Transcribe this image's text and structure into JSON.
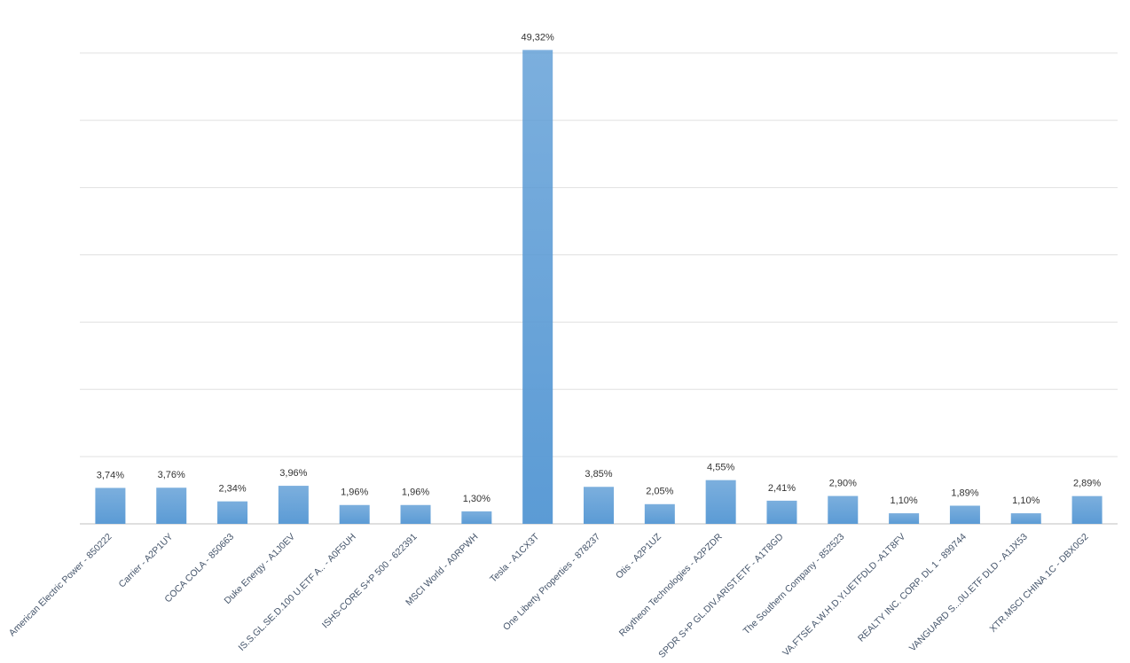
{
  "chart_data": {
    "type": "bar",
    "categories": [
      "American Electric Power - 850222",
      "Carrier - A2P1UY",
      "COCA COLA - 850663",
      "Duke Energy - A1J0EV",
      "IS.S.GL.SE.D.100 U.ETF A.. - A0F5UH",
      "ISHS-CORE S+P 500 - 622391",
      "MSCI World - A0RPWH",
      "Tesla - A1CX3T",
      "One Liberty Properties - 878237",
      "Otis - A2P1UZ",
      "Raytheon Technologies - A2PZDR",
      "SPDR S+P GL.DIV.ARIST.ETF - A1T8GD",
      "The Southern Company - 852523",
      "VA.FTSE A.W.H.D.Y.UETFDLD -A1T8FV",
      "REALTY INC. CORP. DL 1 - 899744",
      "VANGUARD S...0U.ETF DLD - A1JX53",
      "XTR.MSCI CHINA 1C - DBX0G2"
    ],
    "values": [
      3.74,
      3.76,
      2.34,
      3.96,
      1.96,
      1.96,
      1.3,
      49.32,
      3.85,
      2.05,
      4.55,
      2.41,
      2.9,
      1.1,
      1.89,
      1.1,
      2.89
    ],
    "value_labels": [
      "3,74%",
      "3,76%",
      "2,34%",
      "3,96%",
      "1,96%",
      "1,96%",
      "1,30%",
      "49,32%",
      "3,85%",
      "2,05%",
      "4,55%",
      "2,41%",
      "2,90%",
      "1,10%",
      "1,89%",
      "1,10%",
      "2,89%"
    ],
    "color": "#5b9bd5",
    "ylim": [
      0,
      50
    ],
    "yticks": [
      0,
      7,
      14,
      21,
      28,
      35,
      42,
      49
    ],
    "grid": true
  }
}
